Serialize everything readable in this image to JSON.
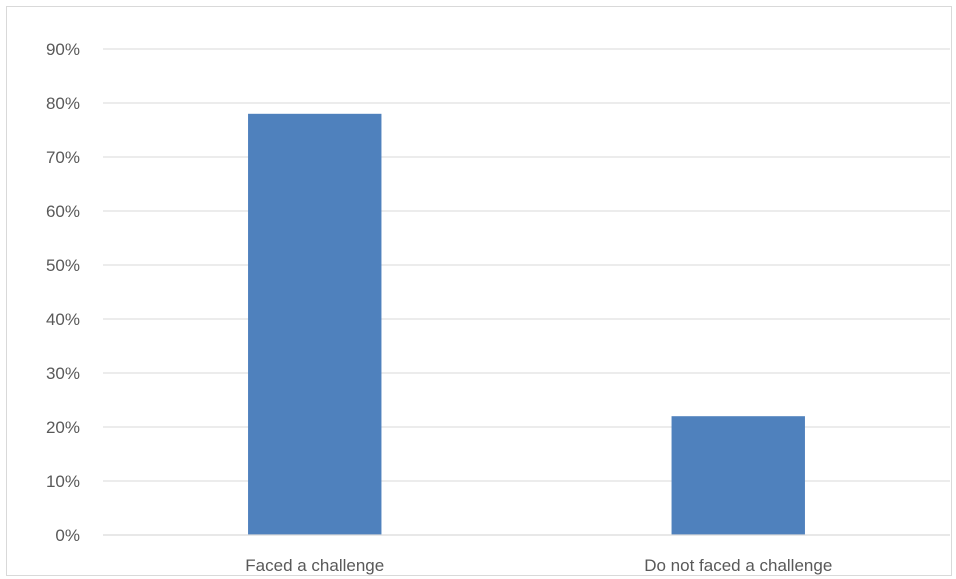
{
  "chart_data": {
    "type": "bar",
    "categories": [
      "Faced a challenge",
      "Do not faced a challenge"
    ],
    "values": [
      78,
      22
    ],
    "value_unit": "%",
    "ylim": [
      0,
      90
    ],
    "yticks": [
      "0%",
      "10%",
      "20%",
      "30%",
      "40%",
      "50%",
      "60%",
      "70%",
      "80%",
      "90%"
    ],
    "grid": true,
    "legend": "none",
    "bar_color": "#4f81bd",
    "title": "",
    "xlabel": "",
    "ylabel": ""
  }
}
